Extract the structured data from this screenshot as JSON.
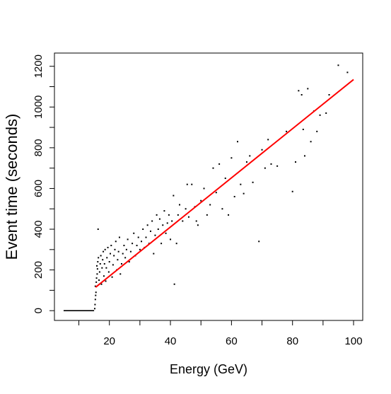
{
  "chart_data": {
    "type": "scatter",
    "title": "",
    "xlabel": "Energy (GeV)",
    "ylabel": "Event time (seconds)",
    "xlim": [
      2,
      103
    ],
    "ylim": [
      -48,
      1265
    ],
    "x_ticks": [
      20,
      40,
      60,
      80,
      100
    ],
    "x_minor_ticks": [
      10,
      30,
      50,
      70,
      90
    ],
    "y_ticks": [
      0,
      200,
      400,
      600,
      800,
      1000,
      1200
    ],
    "y_minor_ticks": [
      100,
      300,
      500,
      700,
      900,
      1100
    ],
    "grid": false,
    "legend": "none",
    "point_color": "#000000",
    "fit_color": "#ff0000",
    "series": [
      {
        "type": "line",
        "values_description": "zero baseline segment",
        "x": [
          5,
          15
        ],
        "y": [
          0,
          0
        ]
      },
      {
        "type": "line",
        "values_description": "fitted line",
        "x": [
          15.5,
          100
        ],
        "y": [
          115,
          1135
        ]
      },
      {
        "type": "scatter",
        "points": [
          [
            15.2,
            10
          ],
          [
            15.3,
            30
          ],
          [
            15.4,
            55
          ],
          [
            15.5,
            75
          ],
          [
            15.6,
            90
          ],
          [
            15.4,
            120
          ],
          [
            15.7,
            140
          ],
          [
            15.8,
            160
          ],
          [
            16.0,
            180
          ],
          [
            16.1,
            205
          ],
          [
            15.9,
            220
          ],
          [
            16.2,
            240
          ],
          [
            16.4,
            260
          ],
          [
            16.6,
            150
          ],
          [
            16.8,
            190
          ],
          [
            17.0,
            230
          ],
          [
            17.2,
            270
          ],
          [
            16.3,
            400
          ],
          [
            17.4,
            130
          ],
          [
            17.6,
            210
          ],
          [
            17.8,
            250
          ],
          [
            18.0,
            290
          ],
          [
            18.2,
            170
          ],
          [
            18.4,
            230
          ],
          [
            18.6,
            300
          ],
          [
            18.8,
            145
          ],
          [
            19.0,
            210
          ],
          [
            19.2,
            260
          ],
          [
            19.5,
            310
          ],
          [
            19.8,
            190
          ],
          [
            20.0,
            240
          ],
          [
            20.3,
            280
          ],
          [
            20.6,
            320
          ],
          [
            20.9,
            165
          ],
          [
            21.2,
            225
          ],
          [
            21.5,
            270
          ],
          [
            21.8,
            300
          ],
          [
            22.1,
            340
          ],
          [
            22.4,
            200
          ],
          [
            22.7,
            250
          ],
          [
            23.0,
            290
          ],
          [
            23.3,
            360
          ],
          [
            23.6,
            180
          ],
          [
            24.0,
            230
          ],
          [
            24.4,
            280
          ],
          [
            24.8,
            320
          ],
          [
            25.2,
            260
          ],
          [
            25.6,
            300
          ],
          [
            26.0,
            350
          ],
          [
            26.5,
            240
          ],
          [
            27.0,
            290
          ],
          [
            27.5,
            330
          ],
          [
            28.0,
            380
          ],
          [
            28.5,
            270
          ],
          [
            29.0,
            320
          ],
          [
            29.5,
            360
          ],
          [
            30.0,
            300
          ],
          [
            30.5,
            340
          ],
          [
            31.0,
            400
          ],
          [
            31.5,
            310
          ],
          [
            32.0,
            360
          ],
          [
            32.5,
            420
          ],
          [
            33.0,
            330
          ],
          [
            33.5,
            390
          ],
          [
            34.0,
            440
          ],
          [
            34.5,
            280
          ],
          [
            35.0,
            370
          ],
          [
            35.5,
            470
          ],
          [
            36.0,
            400
          ],
          [
            36.5,
            450
          ],
          [
            37.0,
            330
          ],
          [
            37.5,
            420
          ],
          [
            38.0,
            490
          ],
          [
            38.5,
            380
          ],
          [
            39.0,
            430
          ],
          [
            39.5,
            470
          ],
          [
            40.0,
            350
          ],
          [
            40.5,
            440
          ],
          [
            41.0,
            565
          ],
          [
            41.3,
            130
          ],
          [
            42.0,
            330
          ],
          [
            42.5,
            470
          ],
          [
            43.0,
            520
          ],
          [
            44.0,
            440
          ],
          [
            45.0,
            500
          ],
          [
            45.5,
            620
          ],
          [
            46.0,
            460
          ],
          [
            47.0,
            620
          ],
          [
            48.0,
            510
          ],
          [
            48.5,
            440
          ],
          [
            49.0,
            420
          ],
          [
            50.0,
            540
          ],
          [
            51.0,
            600
          ],
          [
            52.0,
            470
          ],
          [
            53.0,
            520
          ],
          [
            54.0,
            700
          ],
          [
            55.0,
            580
          ],
          [
            56.0,
            720
          ],
          [
            57.0,
            500
          ],
          [
            58.0,
            650
          ],
          [
            59.0,
            470
          ],
          [
            60.0,
            750
          ],
          [
            61.0,
            560
          ],
          [
            62.0,
            830
          ],
          [
            63.0,
            620
          ],
          [
            64.0,
            575
          ],
          [
            65.0,
            730
          ],
          [
            66.0,
            760
          ],
          [
            67.0,
            630
          ],
          [
            69.0,
            340
          ],
          [
            70.0,
            790
          ],
          [
            71.0,
            700
          ],
          [
            72.0,
            840
          ],
          [
            73.0,
            720
          ],
          [
            75.0,
            710
          ],
          [
            78.0,
            880
          ],
          [
            80.0,
            585
          ],
          [
            81.0,
            730
          ],
          [
            82.0,
            1080
          ],
          [
            83.0,
            1060
          ],
          [
            83.5,
            890
          ],
          [
            84.0,
            760
          ],
          [
            85.0,
            1090
          ],
          [
            86.0,
            830
          ],
          [
            87.0,
            980
          ],
          [
            88.0,
            880
          ],
          [
            89.0,
            960
          ],
          [
            91.0,
            970
          ],
          [
            92.0,
            1060
          ],
          [
            95.0,
            1205
          ],
          [
            98.0,
            1170
          ]
        ]
      }
    ]
  }
}
